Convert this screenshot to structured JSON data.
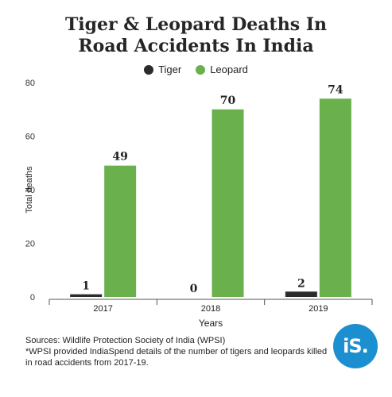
{
  "header": {
    "title_line1": "Tiger & Leopard Deaths In",
    "title_line2": "Road Accidents In India"
  },
  "colors": {
    "tiger": "#2b2b2b",
    "leopard": "#6ab04c",
    "logo_bg": "#1b8fd0",
    "axis": "#555555"
  },
  "chart_data": {
    "type": "bar",
    "title": "Tiger & Leopard Deaths In Road Accidents In India",
    "xlabel": "Years",
    "ylabel": "Total deaths",
    "categories": [
      "2017",
      "2018",
      "2019"
    ],
    "ylim": [
      0,
      80
    ],
    "yticks": [
      0,
      20,
      40,
      60,
      80
    ],
    "grid": false,
    "legend_position": "top-center",
    "series": [
      {
        "name": "Tiger",
        "values": [
          1,
          0,
          2
        ],
        "color": "#2b2b2b"
      },
      {
        "name": "Leopard",
        "values": [
          49,
          70,
          74
        ],
        "color": "#6ab04c"
      }
    ]
  },
  "footer": {
    "sources_line": "Sources: Wildlife Protection Society of India (WPSI)",
    "note_line": "*WPSI provided IndiaSpend details of the number of tigers and leopards killed in road accidents from 2017-19."
  },
  "logo": {
    "text": "iS."
  }
}
